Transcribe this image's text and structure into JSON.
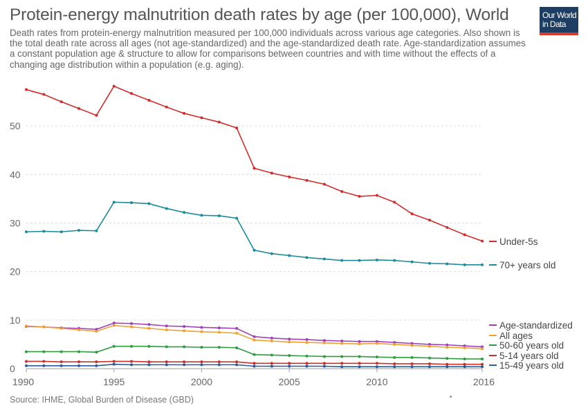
{
  "header": {
    "title": "Protein-energy malnutrition death rates by age (per 100,000), World",
    "subtitle": "Death rates from protein-energy malnutrition measured per 100,000 individuals across various age categories. Also shown is the total death rate across all ages (not age-standardized) and the age-standardized death rate. Age-standardization assumes a constant population age & structure to allow for comparisons between countries and with time without the effects of a changing age distribution within a population (e.g. aging)."
  },
  "logo": {
    "line1": "Our World",
    "line2": "in Data",
    "bg_color": "#1d3d63",
    "accent_color": "#d73c2c"
  },
  "footer": {
    "source": "Source: IHME, Global Burden of Disease (GBD)"
  },
  "chart_data": {
    "type": "line",
    "title": "Protein-energy malnutrition death rates by age (per 100,000), World",
    "xlabel": "",
    "ylabel": "",
    "x": [
      1990,
      1991,
      1992,
      1993,
      1994,
      1995,
      1996,
      1997,
      1998,
      1999,
      2000,
      2001,
      2002,
      2003,
      2004,
      2005,
      2006,
      2007,
      2008,
      2009,
      2010,
      2011,
      2012,
      2013,
      2014,
      2015,
      2016
    ],
    "x_ticks": [
      1990,
      1995,
      2000,
      2005,
      2010,
      2016
    ],
    "y_ticks": [
      0,
      10,
      20,
      30,
      40,
      50
    ],
    "xlim": [
      1990,
      2016
    ],
    "ylim": [
      0,
      60
    ],
    "grid": "horizontal dashed",
    "legend": "right, labels at line ends",
    "series": [
      {
        "name": "Under-5s",
        "color": "#d42a2a",
        "values": [
          57.5,
          56.5,
          55.0,
          53.6,
          52.2,
          58.2,
          56.7,
          55.3,
          53.9,
          52.6,
          51.7,
          50.8,
          49.6,
          41.3,
          40.3,
          39.5,
          38.8,
          38.0,
          36.5,
          35.5,
          35.7,
          34.3,
          31.9,
          30.6,
          29.1,
          27.6,
          26.3
        ]
      },
      {
        "name": "70+ years old",
        "color": "#1b8b9c",
        "values": [
          28.2,
          28.3,
          28.2,
          28.5,
          28.4,
          34.3,
          34.2,
          34.0,
          33.0,
          32.2,
          31.6,
          31.5,
          31.0,
          24.4,
          23.7,
          23.3,
          22.9,
          22.6,
          22.3,
          22.3,
          22.4,
          22.3,
          22.0,
          21.7,
          21.6,
          21.4,
          21.4
        ]
      },
      {
        "name": "Age-standardized",
        "color": "#a040b8",
        "values": [
          8.7,
          8.6,
          8.4,
          8.3,
          8.1,
          9.4,
          9.3,
          9.1,
          8.8,
          8.7,
          8.5,
          8.4,
          8.3,
          6.6,
          6.3,
          6.1,
          6.0,
          5.8,
          5.7,
          5.6,
          5.6,
          5.4,
          5.2,
          5.0,
          4.9,
          4.7,
          4.5
        ]
      },
      {
        "name": "All ages",
        "color": "#f0a030",
        "values": [
          8.8,
          8.6,
          8.3,
          8.0,
          7.7,
          8.9,
          8.6,
          8.3,
          8.0,
          7.8,
          7.6,
          7.5,
          7.3,
          5.9,
          5.7,
          5.5,
          5.4,
          5.3,
          5.2,
          5.1,
          5.2,
          5.0,
          4.8,
          4.6,
          4.4,
          4.3,
          4.1
        ]
      },
      {
        "name": "50-60 years old",
        "color": "#2e9c3f",
        "values": [
          3.5,
          3.5,
          3.5,
          3.5,
          3.4,
          4.6,
          4.6,
          4.6,
          4.5,
          4.5,
          4.4,
          4.4,
          4.3,
          2.9,
          2.8,
          2.7,
          2.6,
          2.5,
          2.5,
          2.5,
          2.4,
          2.3,
          2.3,
          2.2,
          2.1,
          2.0,
          2.0
        ]
      },
      {
        "name": "5-14 years old",
        "color": "#c8302a",
        "values": [
          1.5,
          1.5,
          1.4,
          1.4,
          1.4,
          1.5,
          1.5,
          1.4,
          1.4,
          1.4,
          1.4,
          1.4,
          1.4,
          1.1,
          1.1,
          1.1,
          1.1,
          1.1,
          1.1,
          1.1,
          1.1,
          1.0,
          1.0,
          1.0,
          0.9,
          0.9,
          0.9
        ]
      },
      {
        "name": "15-49 years old",
        "color": "#2a5a9a",
        "values": [
          0.6,
          0.6,
          0.6,
          0.6,
          0.6,
          0.9,
          0.8,
          0.8,
          0.8,
          0.8,
          0.8,
          0.8,
          0.8,
          0.5,
          0.5,
          0.5,
          0.5,
          0.5,
          0.4,
          0.4,
          0.4,
          0.4,
          0.4,
          0.4,
          0.4,
          0.4,
          0.4
        ]
      }
    ]
  }
}
